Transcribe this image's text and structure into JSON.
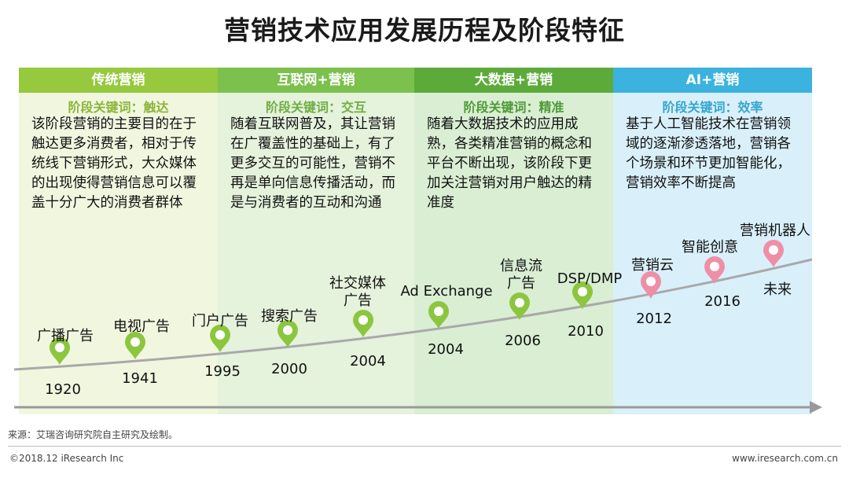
{
  "title": "营销技术应用发展历程及阶段特征",
  "colors": {
    "stage1_header": "#96c93d",
    "stage1_bg": "#f1f7df",
    "stage1_keyword": "#8db53a",
    "stage2_header": "#7cc04d",
    "stage2_bg": "#e5f2dc",
    "stage2_keyword": "#6fae43",
    "stage3_header": "#5cab3a",
    "stage3_bg": "#d9eed3",
    "stage3_keyword": "#4e9a35",
    "stage4_header": "#3bb3de",
    "stage4_bg": "#d9f0fa",
    "stage4_keyword": "#34a6d0",
    "marker_green": "#8cc63f",
    "marker_pink": "#ef8fa6",
    "curve": "#a9a9a9"
  },
  "stages": [
    {
      "header": "传统营销",
      "keyword": "阶段关键词：触达",
      "description": "该阶段营销的主要目的在于触达更多消费者，相对于传统线下营销形式，大众媒体的出现使得营销信息可以覆盖十分广大的消费者群体"
    },
    {
      "header": "互联网+营销",
      "keyword": "阶段关键词：交互",
      "description": "随着互联网普及，其让营销在广覆盖性的基础上，有了更多交互的可能性，营销不再是单向信息传播活动，而是与消费者的互动和沟通"
    },
    {
      "header": "大数据+营销",
      "keyword": "阶段关键词：精准",
      "description": "随着大数据技术的应用成熟，各类精准营销的概念和平台不断出现，该阶段下更加关注营销对用户触达的精准度"
    },
    {
      "header": "AI+营销",
      "keyword": "阶段关键词：效率",
      "description": "基于人工智能技术在营销领域的逐渐渗透落地，营销各个场景和环节更加智能化，营销效率不断提高"
    }
  ],
  "milestones": [
    {
      "name": "广播广告",
      "year": "1920",
      "color": "green"
    },
    {
      "name": "电视广告",
      "year": "1941",
      "color": "green"
    },
    {
      "name": "门户广告",
      "year": "1995",
      "color": "green"
    },
    {
      "name": "搜索广告",
      "year": "2000",
      "color": "green"
    },
    {
      "name": "社交媒体\n广告",
      "year": "2004",
      "color": "green"
    },
    {
      "name": "Ad Exchange",
      "year": "2004",
      "color": "green"
    },
    {
      "name": "信息流\n广告",
      "year": "2006",
      "color": "green"
    },
    {
      "name": "DSP/DMP",
      "year": "2010",
      "color": "green"
    },
    {
      "name": "营销云",
      "year": "2012",
      "color": "pink"
    },
    {
      "name": "智能创意",
      "year": "2016",
      "color": "pink"
    },
    {
      "name": "营销机器人",
      "year": "未来",
      "color": "pink"
    }
  ],
  "footer": {
    "source": "来源：艾瑞咨询研究院自主研究及绘制。",
    "copyright": "©2018.12 iResearch Inc",
    "website": "www.iresearch.com.cn"
  }
}
